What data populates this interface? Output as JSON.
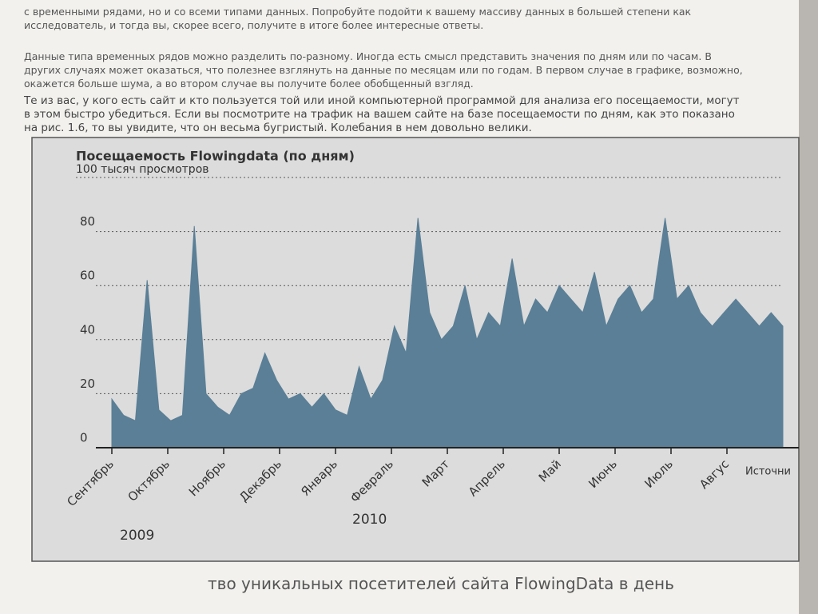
{
  "page": {
    "paragraphs": [
      "с временными рядами, но и со всеми типами данных. Попробуйте подойти к вашему массиву данных в большей степени как исследователь, и тогда вы, скорее всего, получите в итоге более интересные ответы.",
      "Данные типа временных рядов можно разделить по-разному. Иногда есть смысл представить значения по дням или по часам. В других случаях может оказаться, что полезнее взглянуть на данные по месяцам или по годам. В первом случае в графике, возможно, окажется больше шума, а во втором случае вы получите более обобщенный взгляд.",
      "Те из вас, у кого есть сайт и кто пользуется той или иной компьютерной программой для анализа его посещаемости, могут в этом быстро убедиться. Если вы посмотрите на трафик на вашем сайте на базе посещаемости по дням, как это показано на рис. 1.6, то вы увидите, что он весьма бугристый. Колебания в нем довольно велики."
    ],
    "caption": "тво уникальных посетителей сайта FlowingData в день"
  },
  "chart_data": {
    "type": "area",
    "title": "Посещаемость Flowingdata (по дням)",
    "months": [
      "Сентябрь",
      "Октябрь",
      "Ноябрь",
      "Декабрь",
      "Январь",
      "Февраль",
      "Март",
      "Апрель",
      "Май",
      "Июнь",
      "Июль",
      "Авгус"
    ],
    "years": [
      "2009",
      "2010"
    ],
    "source": "Источни",
    "color": "#5a7f96",
    "values": [
      18,
      12,
      10,
      62,
      14,
      10,
      12,
      82,
      20,
      15,
      12,
      20,
      22,
      35,
      25,
      18,
      20,
      15,
      20,
      14,
      12,
      30,
      18,
      25,
      45,
      35,
      85,
      50,
      40,
      45,
      60,
      40,
      50,
      45,
      70,
      45,
      55,
      50,
      60,
      55,
      50,
      65,
      45,
      55,
      60,
      50,
      55,
      85,
      55,
      60,
      50,
      45,
      50,
      55,
      50,
      45,
      50,
      45
    ],
    "ylim": [
      0,
      100
    ],
    "yticks": [
      0,
      20,
      40,
      60,
      80,
      {
        "value": 100,
        "label": "100 тысяч просмотров"
      }
    ],
    "grid": true
  }
}
